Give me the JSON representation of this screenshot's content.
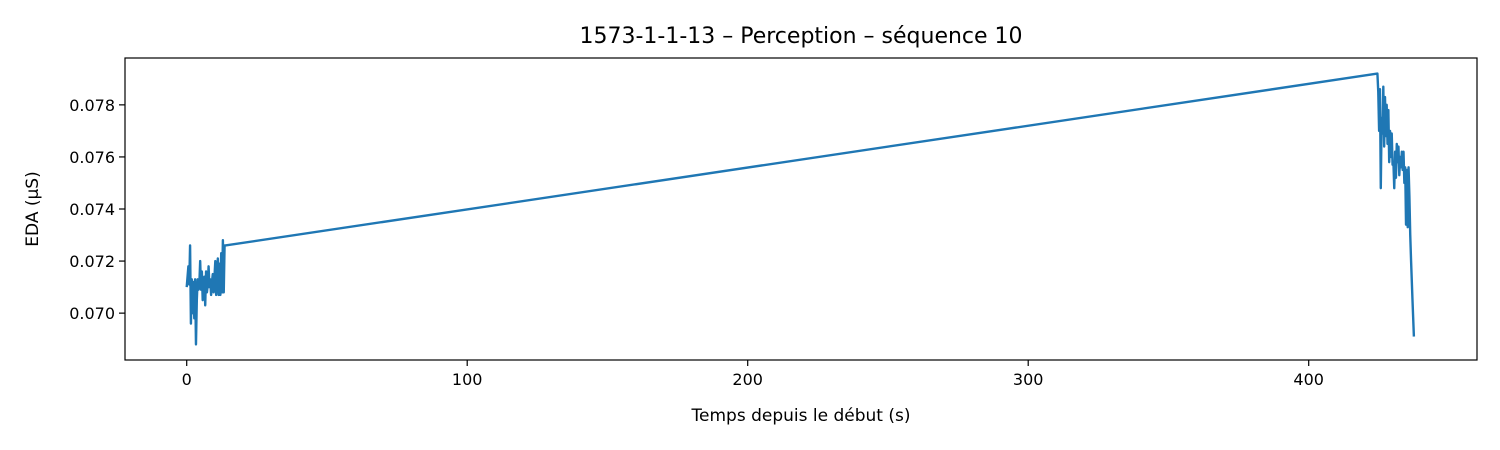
{
  "chart_data": {
    "type": "line",
    "title": "1573-1-1-13 – Perception – séquence 10",
    "xlabel": "Temps depuis le début (s)",
    "ylabel": "EDA (µS)",
    "xlim": [
      -22,
      460
    ],
    "ylim": [
      0.0682,
      0.0798
    ],
    "xticks": [
      0,
      100,
      200,
      300,
      400
    ],
    "xtick_labels": [
      "0",
      "100",
      "200",
      "300",
      "400"
    ],
    "yticks": [
      0.07,
      0.072,
      0.074,
      0.076,
      0.078
    ],
    "ytick_labels": [
      "0.070",
      "0.072",
      "0.074",
      "0.076",
      "0.078"
    ],
    "grid": false,
    "colors": {
      "series": "#1f77b4"
    },
    "series": [
      {
        "x": [
          0,
          0.3,
          0.6,
          0.9,
          1.2,
          1.5,
          1.8,
          2.1,
          2.4,
          2.7,
          3.0,
          3.3,
          3.6,
          3.9,
          4.2,
          4.5,
          4.8,
          5.1,
          5.4,
          5.7,
          6.0,
          6.3,
          6.6,
          6.9,
          7.2,
          7.5,
          7.8,
          8.1,
          8.4,
          8.7,
          9.0,
          9.3,
          9.6,
          9.9,
          10.2,
          10.5,
          10.8,
          11.1,
          11.4,
          11.7,
          12.0,
          12.3,
          12.6,
          12.9,
          13.2,
          13.5,
          13.8,
          424.5,
          424.8,
          425.1,
          425.4,
          425.7,
          426.0,
          426.3,
          426.6,
          426.9,
          427.2,
          427.5,
          427.8,
          428.1,
          428.4,
          428.7,
          429.0,
          429.3,
          429.6,
          429.9,
          430.2,
          430.5,
          430.8,
          431.1,
          431.4,
          431.7,
          432.0,
          432.3,
          432.6,
          432.9,
          433.2,
          433.5,
          433.8,
          434.1,
          434.4,
          434.7,
          435.0,
          435.3,
          435.6,
          435.9,
          436.2,
          436.5,
          437.0,
          437.5
        ],
        "y": [
          0.071,
          0.0714,
          0.0718,
          0.0711,
          0.0726,
          0.0696,
          0.0713,
          0.07,
          0.0712,
          0.0698,
          0.0713,
          0.0688,
          0.0705,
          0.0713,
          0.0709,
          0.0711,
          0.072,
          0.0709,
          0.0716,
          0.0705,
          0.0711,
          0.0714,
          0.0703,
          0.0716,
          0.0708,
          0.0711,
          0.0718,
          0.071,
          0.0713,
          0.0707,
          0.0712,
          0.0715,
          0.0708,
          0.0714,
          0.072,
          0.0707,
          0.0715,
          0.0721,
          0.0707,
          0.0719,
          0.0707,
          0.0723,
          0.0708,
          0.0728,
          0.0708,
          0.0726,
          0.0726,
          0.0792,
          0.0785,
          0.077,
          0.0786,
          0.0748,
          0.0775,
          0.0769,
          0.0787,
          0.0764,
          0.0783,
          0.0768,
          0.078,
          0.0765,
          0.0778,
          0.0758,
          0.077,
          0.076,
          0.0769,
          0.0757,
          0.0758,
          0.0748,
          0.0762,
          0.0752,
          0.0765,
          0.0758,
          0.0764,
          0.0753,
          0.076,
          0.0756,
          0.0762,
          0.0755,
          0.0762,
          0.075,
          0.0756,
          0.0734,
          0.0755,
          0.0733,
          0.0756,
          0.0745,
          0.073,
          0.072,
          0.0705,
          0.0691
        ]
      }
    ]
  }
}
